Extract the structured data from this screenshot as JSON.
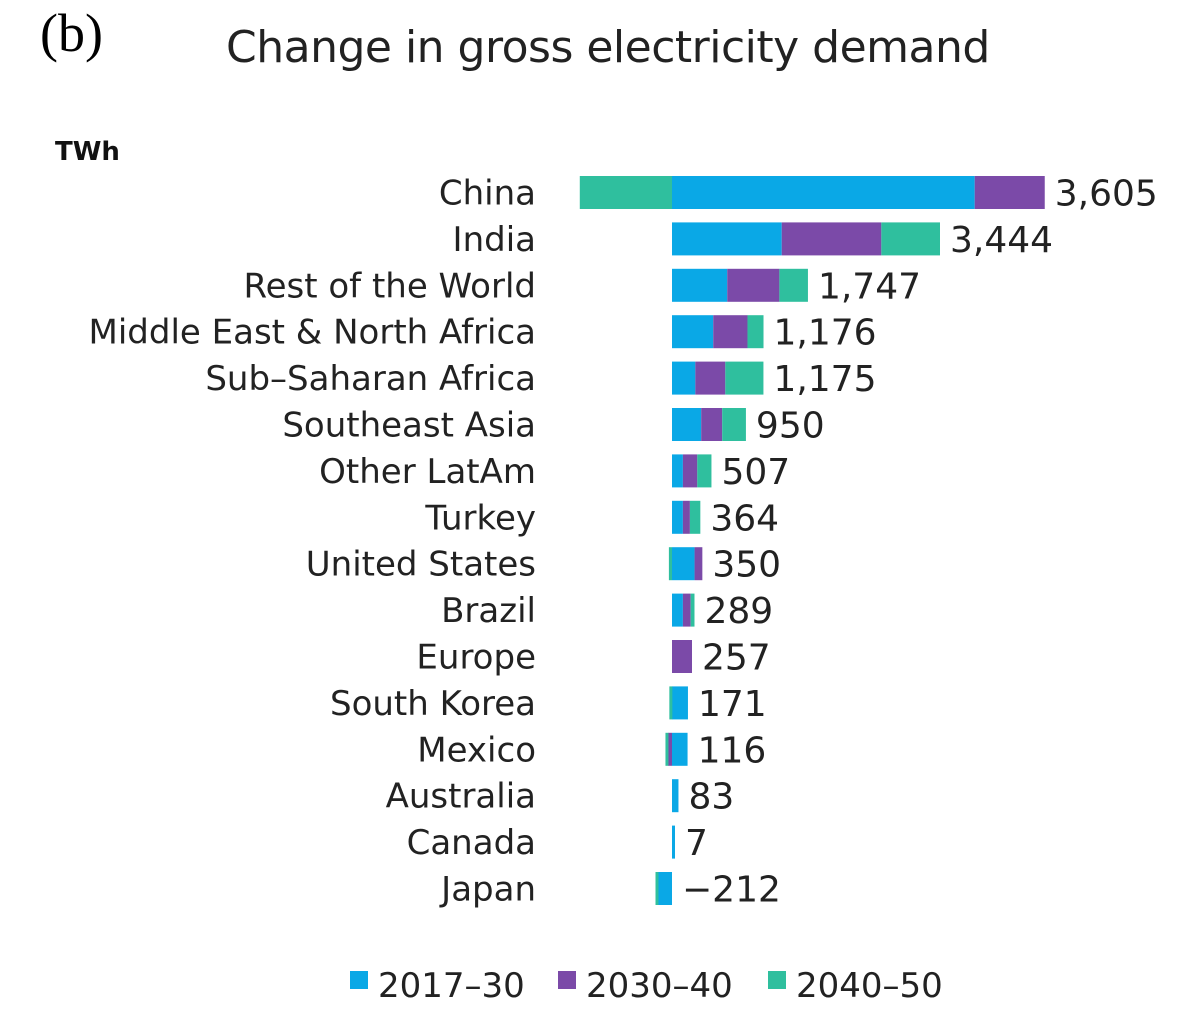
{
  "panel_label": "(b)",
  "chart_data": {
    "type": "bar",
    "orientation": "horizontal",
    "stacked": true,
    "title": "Change in gross electricity demand",
    "unit_label": "TWh",
    "xlabel": "",
    "ylabel": "TWh",
    "grid": false,
    "legend_position": "bottom",
    "categories": [
      "China",
      "India",
      "Rest of the World",
      "Middle East & North Africa",
      "Sub–Saharan Africa",
      "Southeast Asia",
      "Other LatAm",
      "Turkey",
      "United States",
      "Brazil",
      "Europe",
      "South Korea",
      "Mexico",
      "Australia",
      "Canada",
      "Japan"
    ],
    "totals": [
      3605,
      3444,
      1747,
      1176,
      1175,
      950,
      507,
      364,
      350,
      289,
      257,
      171,
      116,
      83,
      7,
      -212
    ],
    "total_labels": [
      "3,605",
      "3,444",
      "1,747",
      "1,176",
      "1,175",
      "950",
      "507",
      "364",
      "350",
      "289",
      "257",
      "171",
      "116",
      "83",
      "7",
      "−212"
    ],
    "series": [
      {
        "name": "2017–30",
        "color": "#0aa8e6",
        "values": [
          3890,
          1410,
          710,
          530,
          300,
          375,
          140,
          140,
          290,
          140,
          0,
          205,
          200,
          83,
          7,
          -180
        ]
      },
      {
        "name": "2030–40",
        "color": "#7b4aa8",
        "values": [
          900,
          1280,
          670,
          440,
          385,
          270,
          185,
          90,
          100,
          100,
          257,
          0,
          -50,
          0,
          0,
          0
        ]
      },
      {
        "name": "2040–50",
        "color": "#2fbf9e",
        "values": [
          -1185,
          754,
          367,
          206,
          490,
          305,
          182,
          134,
          -40,
          49,
          0,
          -34,
          -34,
          0,
          0,
          -32
        ]
      }
    ],
    "xlim": [
      -1200,
      4200
    ]
  }
}
